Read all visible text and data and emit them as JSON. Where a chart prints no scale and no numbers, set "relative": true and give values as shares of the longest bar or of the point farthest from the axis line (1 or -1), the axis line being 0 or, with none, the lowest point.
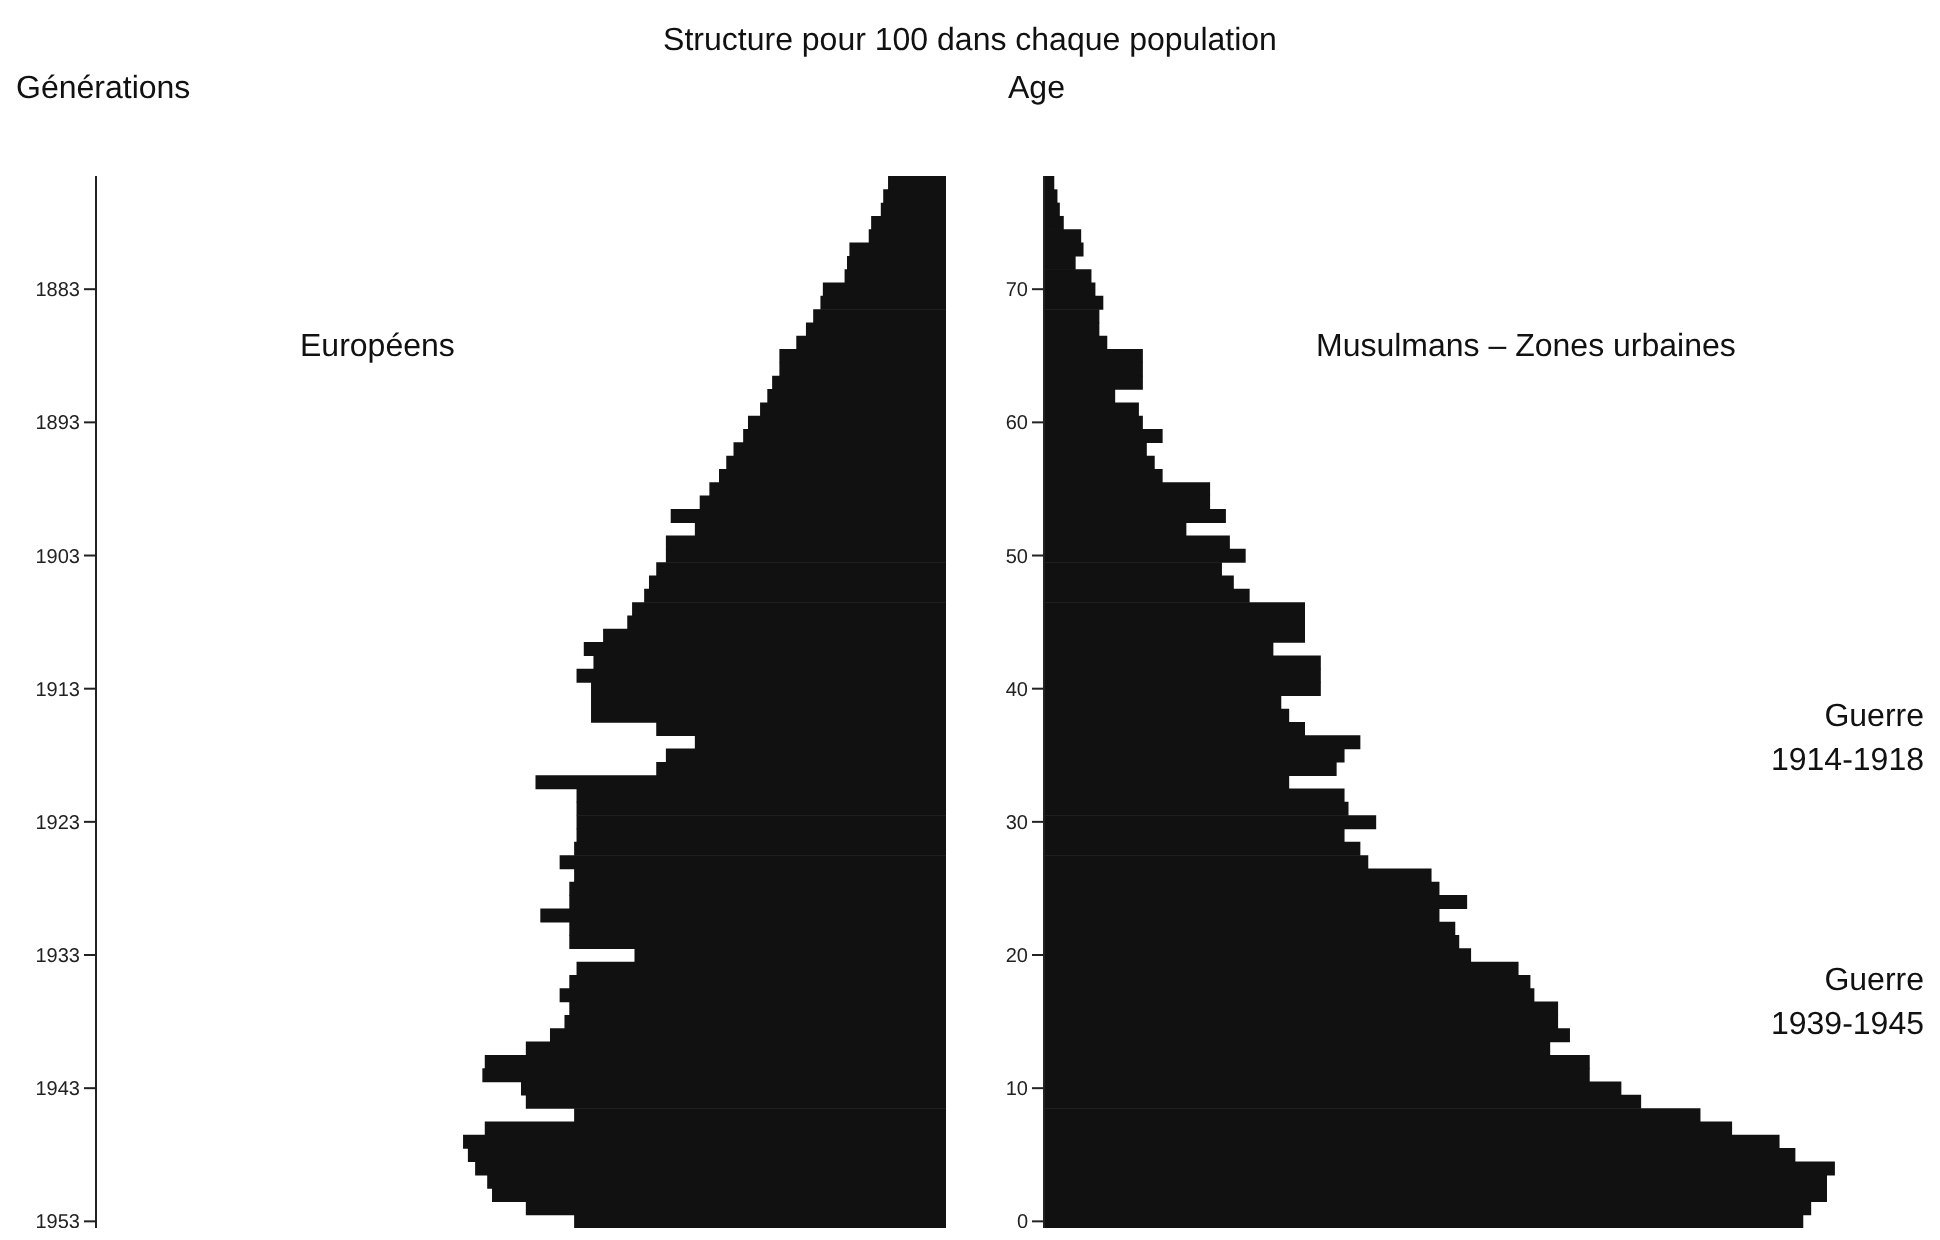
{
  "chart_data": [
    {
      "type": "bar",
      "orientation": "horizontal",
      "relative": true,
      "title": "Structure pour 100 dans chaque population",
      "subtitle": "Européens",
      "ylabel": "Générations",
      "color": "#111111",
      "categories": [
        null,
        null,
        null,
        null,
        null,
        null,
        null,
        null,
        "1883",
        null,
        null,
        null,
        null,
        null,
        null,
        null,
        null,
        null,
        "1893",
        null,
        null,
        null,
        null,
        null,
        null,
        null,
        null,
        null,
        "1903",
        null,
        null,
        null,
        null,
        null,
        null,
        null,
        null,
        null,
        "1913",
        null,
        null,
        null,
        null,
        null,
        null,
        null,
        null,
        null,
        "1923",
        null,
        null,
        null,
        null,
        null,
        null,
        null,
        null,
        null,
        "1933",
        null,
        null,
        null,
        null,
        null,
        null,
        null,
        null,
        null,
        "1943",
        null,
        null,
        null,
        null,
        null,
        null,
        null,
        null,
        null,
        "1953"
      ],
      "values": [
        -0.12,
        -0.13,
        -0.135,
        -0.155,
        -0.16,
        -0.2,
        -0.205,
        -0.21,
        -0.255,
        -0.26,
        -0.275,
        -0.29,
        -0.31,
        -0.345,
        -0.345,
        -0.36,
        -0.37,
        -0.385,
        -0.41,
        -0.42,
        -0.44,
        -0.455,
        -0.47,
        -0.49,
        -0.51,
        -0.57,
        -0.52,
        -0.58,
        -0.58,
        -0.6,
        -0.615,
        -0.625,
        -0.65,
        -0.66,
        -0.71,
        -0.75,
        -0.73,
        -0.765,
        -0.735,
        -0.735,
        -0.735,
        -0.6,
        -0.52,
        -0.58,
        -0.6,
        -0.85,
        -0.765,
        -0.765,
        -0.765,
        -0.765,
        -0.77,
        -0.8,
        -0.77,
        -0.78,
        -0.78,
        -0.84,
        -0.78,
        -0.78,
        -0.645,
        -0.765,
        -0.78,
        -0.8,
        -0.78,
        -0.79,
        -0.82,
        -0.87,
        -0.955,
        -0.96,
        -0.88,
        -0.87,
        -0.77,
        -0.955,
        -1,
        -0.99,
        -0.975,
        -0.95,
        -0.94,
        -0.87,
        -0.77
      ]
    },
    {
      "type": "bar",
      "orientation": "horizontal",
      "relative": true,
      "subtitle": "Musulmans – Zones urbaines",
      "ylabel": "Age",
      "color": "#111111",
      "categories": [
        null,
        null,
        null,
        null,
        null,
        null,
        null,
        null,
        "70",
        null,
        null,
        null,
        null,
        null,
        null,
        null,
        null,
        null,
        "60",
        null,
        null,
        null,
        null,
        null,
        null,
        null,
        null,
        null,
        "50",
        null,
        null,
        null,
        null,
        null,
        null,
        null,
        null,
        null,
        "40",
        null,
        null,
        null,
        null,
        null,
        null,
        null,
        null,
        null,
        "30",
        null,
        null,
        null,
        null,
        null,
        null,
        null,
        null,
        null,
        "20",
        null,
        null,
        null,
        null,
        null,
        null,
        null,
        null,
        null,
        "10",
        null,
        null,
        null,
        null,
        null,
        null,
        null,
        null,
        null,
        "0"
      ],
      "values": [
        0.013,
        0.017,
        0.02,
        0.025,
        0.047,
        0.05,
        0.04,
        0.06,
        0.065,
        0.075,
        0.07,
        0.07,
        0.08,
        0.125,
        0.125,
        0.125,
        0.09,
        0.12,
        0.125,
        0.15,
        0.13,
        0.14,
        0.15,
        0.21,
        0.21,
        0.23,
        0.18,
        0.235,
        0.255,
        0.225,
        0.24,
        0.26,
        0.33,
        0.33,
        0.33,
        0.29,
        0.35,
        0.35,
        0.35,
        0.3,
        0.31,
        0.33,
        0.4,
        0.38,
        0.37,
        0.31,
        0.38,
        0.385,
        0.42,
        0.38,
        0.4,
        0.41,
        0.49,
        0.5,
        0.535,
        0.5,
        0.52,
        0.525,
        0.54,
        0.6,
        0.615,
        0.62,
        0.65,
        0.65,
        0.665,
        0.64,
        0.69,
        0.69,
        0.73,
        0.755,
        0.83,
        0.87,
        0.93,
        0.95,
        1,
        0.99,
        0.99,
        0.97,
        0.96
      ],
      "annotations": [
        "Guerre\n1914-1918",
        "Guerre\n1939-1945"
      ]
    }
  ]
}
